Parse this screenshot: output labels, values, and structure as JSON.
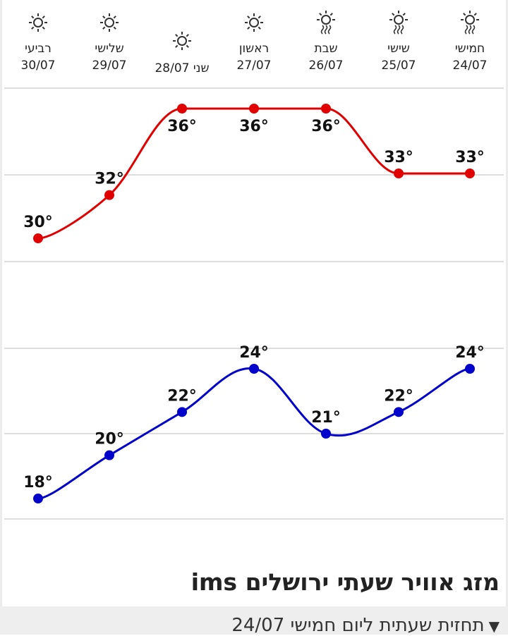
{
  "chart_data": {
    "type": "line",
    "categories": [
      {
        "day": "חמישי",
        "date": "24/07",
        "icon": "sun-haze-icon"
      },
      {
        "day": "שישי",
        "date": "25/07",
        "icon": "sun-haze-icon"
      },
      {
        "day": "שבת",
        "date": "26/07",
        "icon": "sun-haze-icon"
      },
      {
        "day": "ראשון",
        "date": "27/07",
        "icon": "sun-icon"
      },
      {
        "day": "שני 28/07",
        "date": "",
        "icon": "sun-icon"
      },
      {
        "day": "שלישי",
        "date": "29/07",
        "icon": "sun-icon"
      },
      {
        "day": "רביעי",
        "date": "30/07",
        "icon": "sun-icon"
      }
    ],
    "series": [
      {
        "key": "max",
        "values": [
          33,
          33,
          36,
          36,
          36,
          32,
          30
        ],
        "labels": [
          "33°",
          "33°",
          "36°",
          "36°",
          "36°",
          "32°",
          "30°"
        ],
        "color": "#e00000"
      },
      {
        "key": "min",
        "values": [
          24,
          22,
          21,
          24,
          22,
          20,
          18
        ],
        "labels": [
          "24°",
          "22°",
          "21°",
          "24°",
          "22°",
          "20°",
          "18°"
        ],
        "color": "#0000cc"
      }
    ],
    "x_direction": "right-to-left",
    "grid": true
  },
  "heading": "מזג אוויר שעתי ירושלים ims",
  "hourly_toggle": {
    "label": "תחזית שעתית ליום חמישי 24/07",
    "icon": "triangle-down-icon"
  }
}
